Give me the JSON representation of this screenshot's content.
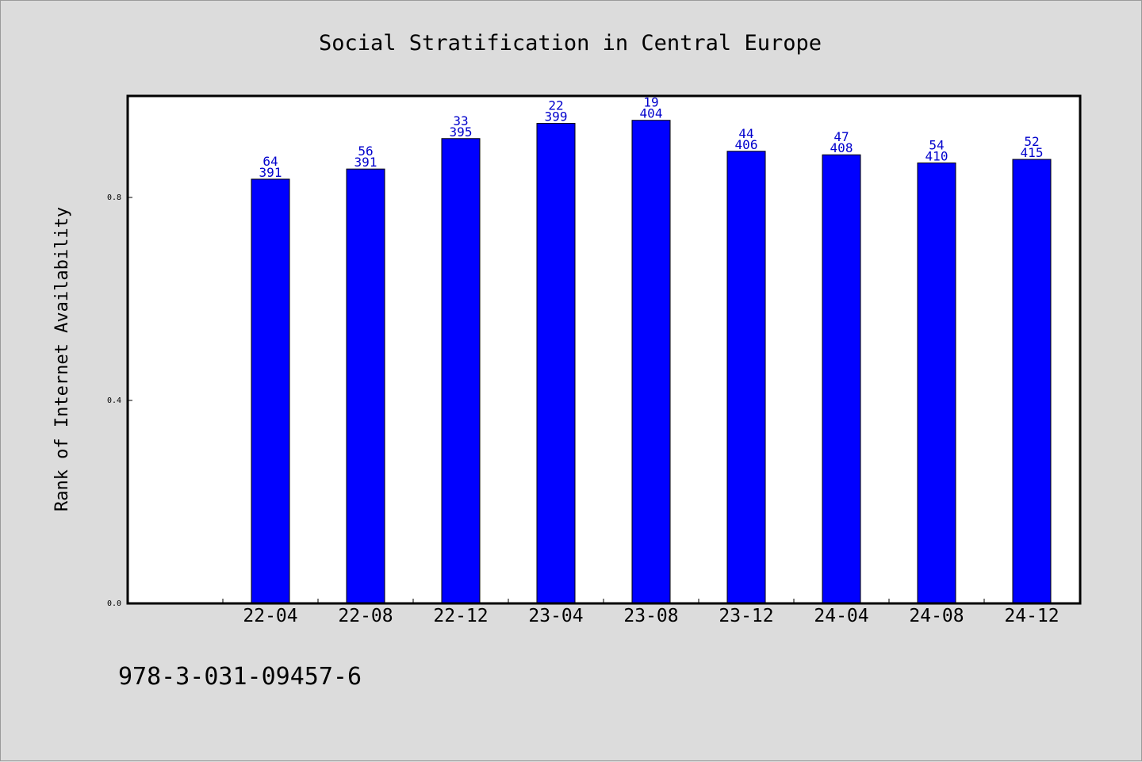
{
  "chart_data": {
    "type": "bar",
    "title": "Social Stratification in Central Europe",
    "xlabel": "",
    "ylabel": "Rank of Internet Availability",
    "categories": [
      "22-04",
      "22-08",
      "22-12",
      "23-04",
      "23-08",
      "23-12",
      "24-04",
      "24-08",
      "24-12"
    ],
    "values": [
      0.836,
      0.856,
      0.916,
      0.946,
      0.952,
      0.891,
      0.884,
      0.868,
      0.875
    ],
    "labels_top": [
      "64",
      "56",
      "33",
      "22",
      "19",
      "44",
      "47",
      "54",
      "52"
    ],
    "labels_bottom": [
      "391",
      "391",
      "395",
      "399",
      "404",
      "406",
      "408",
      "410",
      "415"
    ],
    "yticks": [
      0.0,
      0.4,
      0.8
    ],
    "ytick_labels": [
      "0.0",
      "0.4",
      "0.8"
    ],
    "ylim": [
      0,
      1.0
    ],
    "grid": false,
    "legend": "none",
    "bar_color": "#0000ff",
    "label_color": "#0000cc",
    "plot_background": "#ffffff",
    "page_background": "#dcdcdc"
  },
  "footer": {
    "code": "978-3-031-09457-6"
  }
}
